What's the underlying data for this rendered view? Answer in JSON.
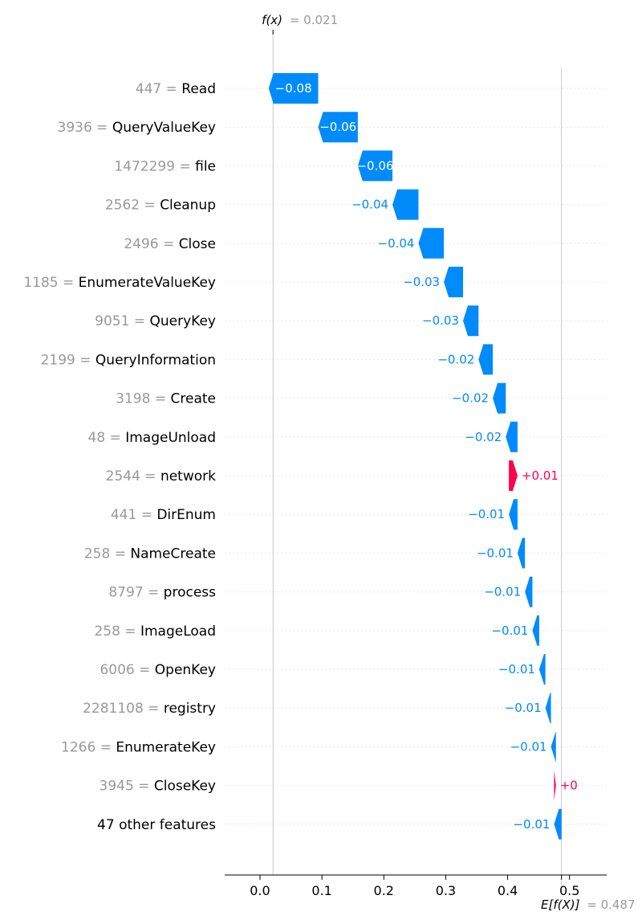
{
  "chart_data": {
    "type": "waterfall",
    "fx_label": "f(x)",
    "fx_value": "= 0.021",
    "ex_label": "E[f(X)]",
    "ex_value": "= 0.487",
    "fx": 0.021,
    "ex": 0.487,
    "xlim": [
      -0.057,
      0.56
    ],
    "x_ticks": [
      0.0,
      0.1,
      0.2,
      0.3,
      0.4,
      0.5
    ],
    "x_tick_labels": [
      "0.0",
      "0.1",
      "0.2",
      "0.3",
      "0.4",
      "0.5"
    ],
    "colors": {
      "negative": "#008bfb",
      "positive": "#ff0051",
      "feature_value": "#999999",
      "feature_name": "#000000"
    },
    "features": [
      {
        "value": "447 =",
        "name": "Read",
        "shap": -0.08,
        "label": "−0.08",
        "label_inside": true
      },
      {
        "value": "3936 =",
        "name": "QueryValueKey",
        "shap": -0.064,
        "label": "−0.06",
        "label_inside": true
      },
      {
        "value": "1472299 =",
        "name": "file",
        "shap": -0.056,
        "label": "−0.06",
        "label_inside": true
      },
      {
        "value": "2562 =",
        "name": "Cleanup",
        "shap": -0.042,
        "label": "−0.04",
        "label_inside": false
      },
      {
        "value": "2496 =",
        "name": "Close",
        "shap": -0.041,
        "label": "−0.04",
        "label_inside": false
      },
      {
        "value": "1185 =",
        "name": "EnumerateValueKey",
        "shap": -0.031,
        "label": "−0.03",
        "label_inside": false
      },
      {
        "value": "9051 =",
        "name": "QueryKey",
        "shap": -0.025,
        "label": "−0.03",
        "label_inside": false
      },
      {
        "value": "2199 =",
        "name": "QueryInformation",
        "shap": -0.023,
        "label": "−0.02",
        "label_inside": false
      },
      {
        "value": "3198 =",
        "name": "Create",
        "shap": -0.021,
        "label": "−0.02",
        "label_inside": false
      },
      {
        "value": "48 =",
        "name": "ImageUnload",
        "shap": -0.019,
        "label": "−0.02",
        "label_inside": false
      },
      {
        "value": "2544 =",
        "name": "network",
        "shap": 0.014,
        "label": "+0.01",
        "label_inside": false
      },
      {
        "value": "441 =",
        "name": "DirEnum",
        "shap": -0.014,
        "label": "−0.01",
        "label_inside": false
      },
      {
        "value": "258 =",
        "name": "NameCreate",
        "shap": -0.012,
        "label": "−0.01",
        "label_inside": false
      },
      {
        "value": "8797 =",
        "name": "process",
        "shap": -0.012,
        "label": "−0.01",
        "label_inside": false
      },
      {
        "value": "258 =",
        "name": "ImageLoad",
        "shap": -0.011,
        "label": "−0.01",
        "label_inside": false
      },
      {
        "value": "6006 =",
        "name": "OpenKey",
        "shap": -0.01,
        "label": "−0.01",
        "label_inside": false
      },
      {
        "value": "2281108 =",
        "name": "registry",
        "shap": -0.009,
        "label": "−0.01",
        "label_inside": false
      },
      {
        "value": "1266 =",
        "name": "EnumerateKey",
        "shap": -0.008,
        "label": "−0.01",
        "label_inside": false
      },
      {
        "value": "3945 =",
        "name": "CloseKey",
        "shap": 0.003,
        "label": "+0",
        "label_inside": false
      },
      {
        "value": "",
        "name": "47 other features",
        "shap": -0.012,
        "label": "−0.01",
        "label_inside": false
      }
    ]
  }
}
